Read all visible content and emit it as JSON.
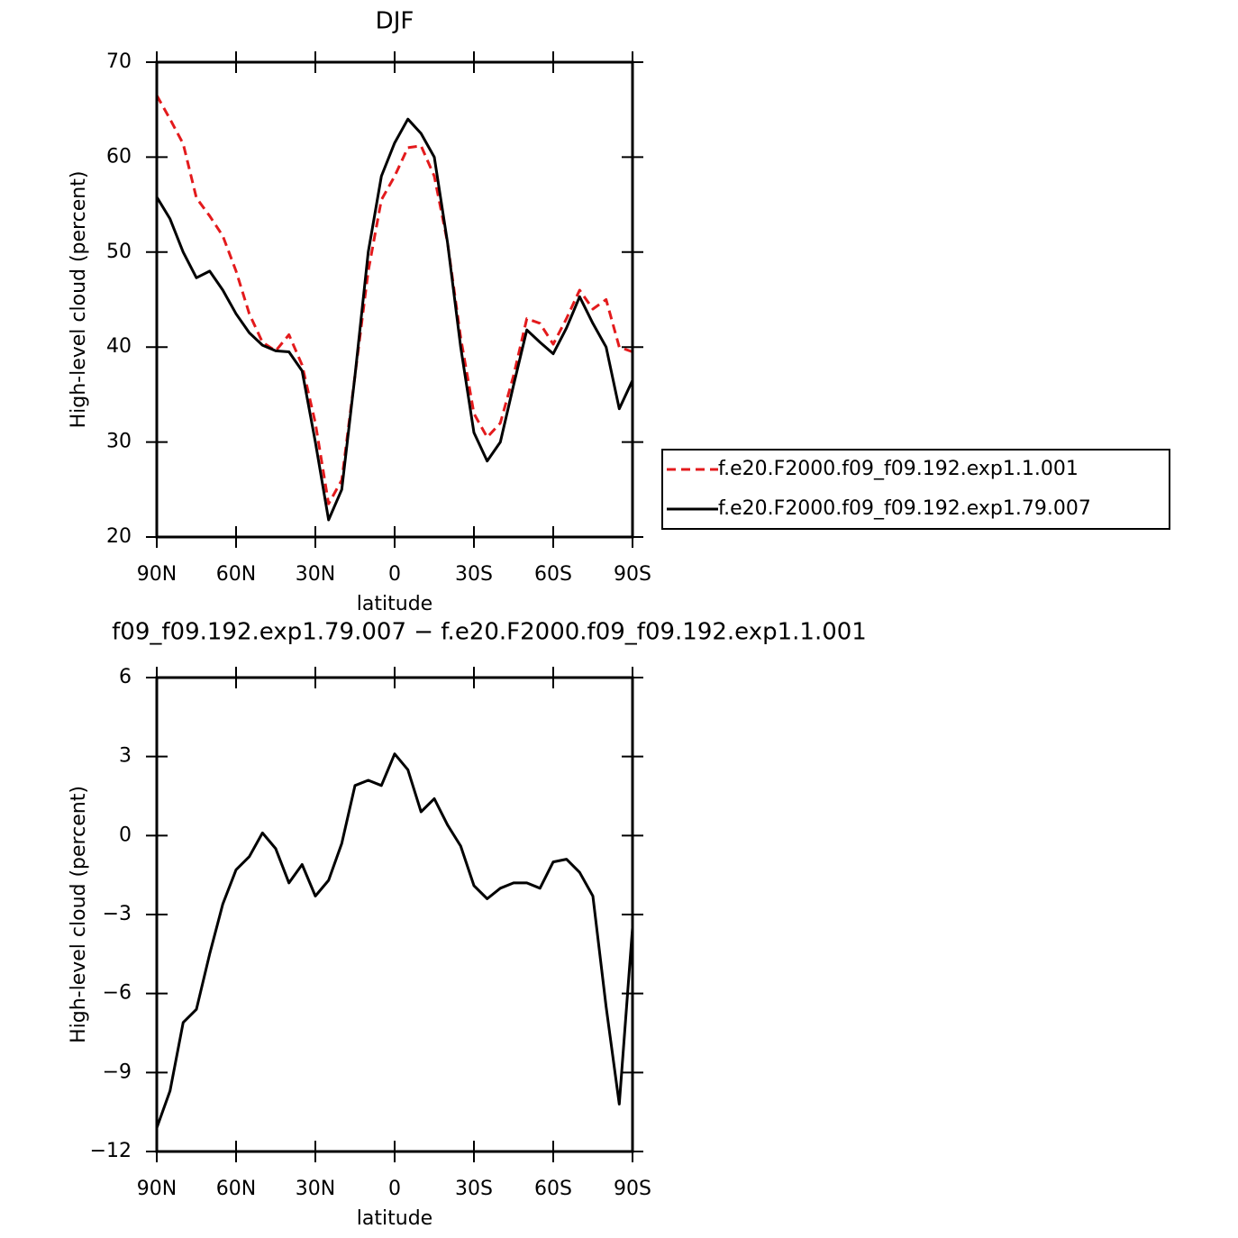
{
  "chart_data": [
    {
      "type": "line",
      "title": "DJF",
      "xlabel": "latitude",
      "ylabel": "High-level cloud (percent)",
      "x": [
        90,
        85,
        80,
        75,
        70,
        65,
        60,
        55,
        50,
        45,
        40,
        35,
        30,
        25,
        20,
        15,
        10,
        5,
        0,
        -5,
        -10,
        -15,
        -20,
        -25,
        -30,
        -35,
        -40,
        -45,
        -50,
        -55,
        -60,
        -65,
        -70,
        -75,
        -80,
        -85,
        -90
      ],
      "xlim": [
        90,
        -90
      ],
      "xticks": [
        {
          "value": 90,
          "label": "90N"
        },
        {
          "value": 60,
          "label": "60N"
        },
        {
          "value": 30,
          "label": "30N"
        },
        0,
        {
          "value": -30,
          "label": "30S"
        },
        {
          "value": -60,
          "label": "60S"
        },
        {
          "value": -90,
          "label": "90S"
        }
      ],
      "ylim": [
        20,
        70
      ],
      "yticks": [
        20,
        30,
        40,
        50,
        60,
        70
      ],
      "legend": "right",
      "series": [
        {
          "name": "f.e20.F2000.f09_f09.192.exp1.1.001",
          "color": "#e31a1c",
          "dashed": true,
          "values": [
            66.5,
            64,
            61.4,
            55.7,
            53.8,
            51.7,
            48,
            43.5,
            40.5,
            39.6,
            41.3,
            38.1,
            32,
            23.5,
            26,
            37,
            48,
            55.5,
            58,
            61,
            61.2,
            58,
            51,
            41,
            33,
            30.5,
            32,
            37,
            43,
            42.5,
            40.3,
            43,
            46,
            44,
            45,
            40,
            39.5
          ]
        },
        {
          "name": "f.e20.F2000.f09_f09.192.exp1.79.007",
          "color": "#000000",
          "dashed": false,
          "values": [
            55.8,
            53.5,
            50,
            47.3,
            48,
            46,
            43.5,
            41.5,
            40.2,
            39.6,
            39.5,
            37.5,
            30,
            21.8,
            25,
            37,
            50,
            58,
            61.5,
            64,
            62.5,
            60,
            51,
            40,
            31,
            28,
            30,
            36,
            41.8,
            40.5,
            39.3,
            42,
            45.3,
            42.5,
            40,
            33.5,
            36.5
          ]
        }
      ]
    },
    {
      "type": "line",
      "title": "f09_f09.192.exp1.79.007 − f.e20.F2000.f09_f09.192.exp1.1.001",
      "xlabel": "latitude",
      "ylabel": "High-level cloud (percent)",
      "x": [
        90,
        85,
        80,
        75,
        70,
        65,
        60,
        55,
        50,
        45,
        40,
        35,
        30,
        25,
        20,
        15,
        10,
        5,
        0,
        -5,
        -10,
        -15,
        -20,
        -25,
        -30,
        -35,
        -40,
        -45,
        -50,
        -55,
        -60,
        -65,
        -70,
        -75,
        -80,
        -85,
        -90
      ],
      "xlim": [
        90,
        -90
      ],
      "xticks": [
        {
          "value": 90,
          "label": "90N"
        },
        {
          "value": 60,
          "label": "60N"
        },
        {
          "value": 30,
          "label": "30N"
        },
        0,
        {
          "value": -30,
          "label": "30S"
        },
        {
          "value": -60,
          "label": "60S"
        },
        {
          "value": -90,
          "label": "90S"
        }
      ],
      "ylim": [
        -12,
        6
      ],
      "yticks": [
        6,
        3,
        0,
        {
          "value": -3,
          "label": "−3"
        },
        {
          "value": -6,
          "label": "−6"
        },
        {
          "value": -9,
          "label": "−9"
        },
        {
          "value": -12,
          "label": "−12"
        }
      ],
      "series": [
        {
          "color": "#000000",
          "dashed": false,
          "values": [
            -11.1,
            -9.7,
            -7.1,
            -6.6,
            -4.5,
            -2.6,
            -1.3,
            -0.8,
            0.1,
            -0.5,
            -1.8,
            -1.1,
            -2.3,
            -1.7,
            -0.3,
            1.9,
            2.1,
            1.9,
            3.1,
            2.5,
            0.9,
            1.4,
            0.4,
            -0.4,
            -1.9,
            -2.4,
            -2.0,
            -1.8,
            -1.8,
            -2.0,
            -1.0,
            -0.9,
            -1.4,
            -2.3,
            -6.5,
            -10.2,
            -3.5
          ]
        }
      ]
    }
  ]
}
